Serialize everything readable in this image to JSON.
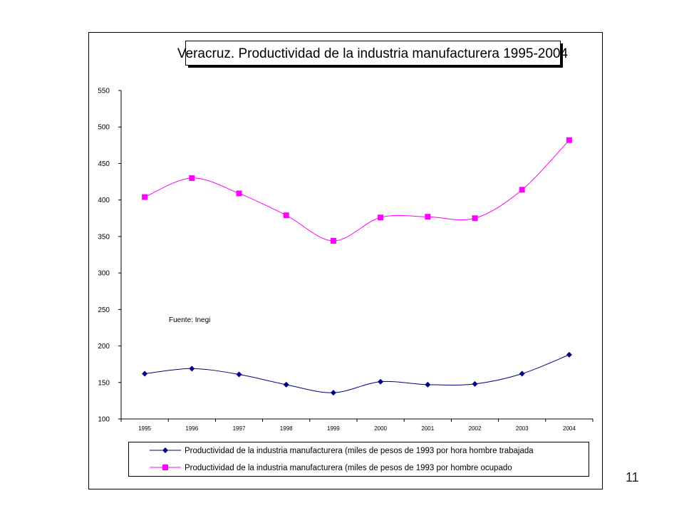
{
  "page_number": "11",
  "chart_data": {
    "type": "line",
    "title": "Veracruz. Productividad de la industria manufacturera 1995-2004",
    "categories": [
      "1995",
      "1996",
      "1997",
      "1998",
      "1999",
      "2000",
      "2001",
      "2002",
      "2003",
      "2004"
    ],
    "ylim": [
      100,
      550
    ],
    "yticks": [
      "100",
      "150",
      "200",
      "250",
      "300",
      "350",
      "400",
      "450",
      "500",
      "550"
    ],
    "grid": false,
    "legend_position": "bottom",
    "annotation": "Fuente: Inegi",
    "series": [
      {
        "name": "Productividad de la industria manufacturera (miles de pesos de 1993 por hora hombre trabajada",
        "color": "#000080",
        "marker": "diamond",
        "values": [
          162,
          169,
          161,
          147,
          136,
          151,
          147,
          148,
          162,
          188
        ]
      },
      {
        "name": "Productividad de la industria manufacturera (miles de pesos de 1993 por hombre ocupado",
        "color": "#ff00ff",
        "marker": "square",
        "values": [
          404,
          430,
          409,
          379,
          344,
          376,
          377,
          375,
          414,
          482
        ]
      }
    ]
  }
}
